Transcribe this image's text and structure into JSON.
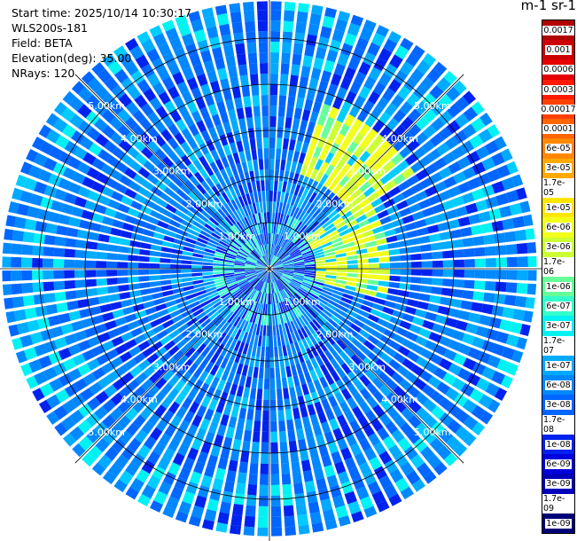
{
  "header": {
    "start_time": "Start time: 2025/10/14 10:30:17",
    "instrument": "WLS200s-181",
    "field": "Field: BETA",
    "elevation": "Elevation(deg): 35.00",
    "nrays": "NRays: 120"
  },
  "colorbar": {
    "title": "m-1 sr-1",
    "labels": [
      "0.0017",
      "0.001",
      "0.0006",
      "0.0003",
      "0.00017",
      "0.0001",
      "6e-05",
      "3e-05",
      "1.7e-05",
      "1e-05",
      "6e-06",
      "3e-06",
      "1.7e-06",
      "1e-06",
      "6e-07",
      "3e-07",
      "1.7e-07",
      "1e-07",
      "6e-08",
      "3e-08",
      "1.7e-08",
      "1e-08",
      "6e-09",
      "3e-09",
      "1.7e-09",
      "1e-09"
    ],
    "colors": [
      "#b20000",
      "#cc0000",
      "#e60000",
      "#ff1a00",
      "#ff4000",
      "#ff6600",
      "#ff8800",
      "#ffaa00",
      "#ffcc00",
      "#ffe600",
      "#f2ff1a",
      "#ccff33",
      "#99ff66",
      "#66ff99",
      "#33ffcc",
      "#00f2f2",
      "#00ccff",
      "#00aaff",
      "#0088ff",
      "#0066ff",
      "#0044ff",
      "#0022ee",
      "#0000dd",
      "#0000bb",
      "#000099",
      "#000077"
    ]
  },
  "chart_data": {
    "type": "ppi-scan",
    "field": "BETA",
    "elevation_deg": 35.0,
    "nrays": 120,
    "range_rings_km": [
      1.0,
      2.0,
      3.0,
      4.0,
      5.0
    ],
    "ring_labels": {
      "r1": "1.00km",
      "r2": "2.00km",
      "r3": "3.00km",
      "r4": "4.00km",
      "r5": "5.00km"
    },
    "max_range_km": 5.8,
    "grid": true
  }
}
